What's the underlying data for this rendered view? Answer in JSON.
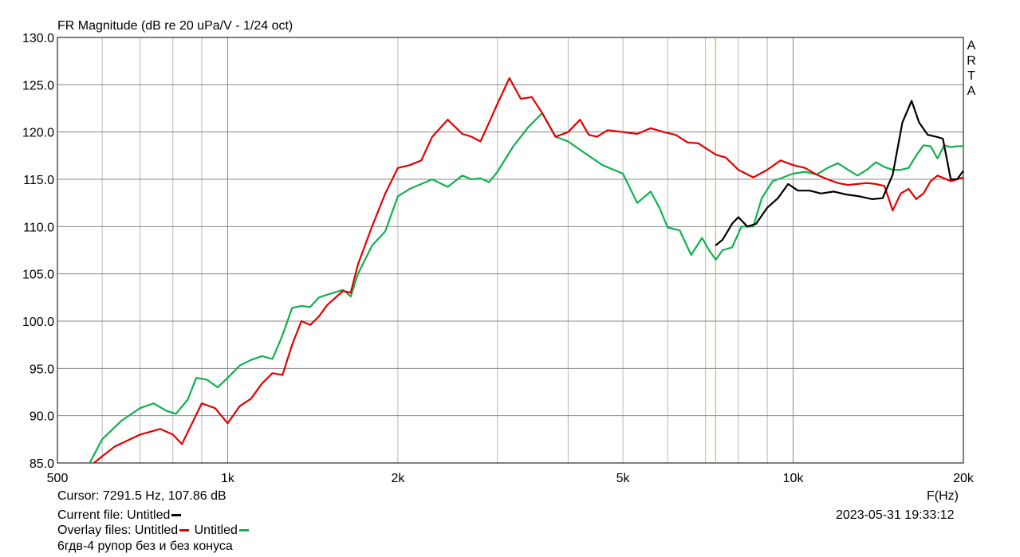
{
  "chart_data": {
    "type": "line",
    "title": "FR Magnitude (dB re 20 uPa/V - 1/24 oct)",
    "xlabel": "F(Hz)",
    "ylabel": "",
    "x_scale": "log",
    "xlim": [
      500,
      20000
    ],
    "ylim": [
      85.0,
      130.0
    ],
    "grid": true,
    "y_ticks": [
      "130.0",
      "125.0",
      "120.0",
      "115.0",
      "110.0",
      "105.0",
      "100.0",
      "95.0",
      "90.0",
      "85.0"
    ],
    "x_ticks": [
      {
        "value": 500,
        "label": "500"
      },
      {
        "value": 1000,
        "label": "1k"
      },
      {
        "value": 2000,
        "label": "2k"
      },
      {
        "value": 5000,
        "label": "5k"
      },
      {
        "value": 10000,
        "label": "10k"
      },
      {
        "value": 20000,
        "label": "20k"
      }
    ],
    "cursor_x": 7291.5,
    "series": [
      {
        "name": "Untitled (current)",
        "color": "#000000",
        "x": [
          7291,
          7500,
          7800,
          8000,
          8300,
          8600,
          9000,
          9400,
          9800,
          10200,
          10700,
          11200,
          11800,
          12400,
          13100,
          13800,
          14400,
          15000,
          15600,
          16200,
          16700,
          17300,
          17900,
          18400,
          19000,
          19500,
          20000
        ],
        "y": [
          108.0,
          108.6,
          110.3,
          111.0,
          110.0,
          110.3,
          112.0,
          113.0,
          114.5,
          113.8,
          113.8,
          113.5,
          113.7,
          113.4,
          113.2,
          112.9,
          113.0,
          115.5,
          121.0,
          123.3,
          121.0,
          119.7,
          119.5,
          119.3,
          115.0,
          115.0,
          115.9
        ]
      },
      {
        "name": "Untitled (overlay 1)",
        "color": "#e30000",
        "x": [
          580,
          630,
          700,
          760,
          800,
          830,
          870,
          900,
          950,
          1000,
          1050,
          1100,
          1150,
          1200,
          1250,
          1300,
          1350,
          1400,
          1450,
          1500,
          1600,
          1650,
          1700,
          1800,
          1900,
          2000,
          2100,
          2200,
          2300,
          2450,
          2600,
          2700,
          2800,
          2900,
          3000,
          3150,
          3300,
          3450,
          3600,
          3800,
          4000,
          4200,
          4350,
          4500,
          4700,
          5000,
          5300,
          5600,
          5900,
          6200,
          6500,
          6800,
          7000,
          7300,
          7600,
          8000,
          8500,
          9000,
          9500,
          10000,
          10500,
          11000,
          11500,
          12000,
          12500,
          13000,
          13500,
          14000,
          14500,
          15000,
          15500,
          16000,
          16500,
          17000,
          17500,
          18000,
          18500,
          19000,
          19500,
          20000
        ],
        "y": [
          85.0,
          86.7,
          88.0,
          88.6,
          88.0,
          87.0,
          89.5,
          91.3,
          90.8,
          89.2,
          91.0,
          91.8,
          93.4,
          94.5,
          94.3,
          97.5,
          100.0,
          99.6,
          100.5,
          101.7,
          103.2,
          103.0,
          106.0,
          110.0,
          113.5,
          116.2,
          116.5,
          117.0,
          119.5,
          121.3,
          119.8,
          119.5,
          119.0,
          121.0,
          123.0,
          125.7,
          123.5,
          123.7,
          122.0,
          119.5,
          120.0,
          121.3,
          119.7,
          119.5,
          120.2,
          120.0,
          119.8,
          120.4,
          120.0,
          119.7,
          118.9,
          118.8,
          118.3,
          117.6,
          117.3,
          116.0,
          115.2,
          116.0,
          117.0,
          116.5,
          116.2,
          115.5,
          115.0,
          114.6,
          114.4,
          114.5,
          114.6,
          114.5,
          114.3,
          111.7,
          113.5,
          114.0,
          112.9,
          113.5,
          114.8,
          115.4,
          115.1,
          114.8,
          115.0,
          115.2
        ]
      },
      {
        "name": "Untitled (overlay 2)",
        "color": "#10b050",
        "x": [
          570,
          600,
          650,
          700,
          740,
          780,
          810,
          850,
          880,
          920,
          960,
          1000,
          1050,
          1100,
          1150,
          1200,
          1250,
          1300,
          1350,
          1400,
          1450,
          1500,
          1600,
          1650,
          1700,
          1800,
          1900,
          2000,
          2100,
          2200,
          2300,
          2450,
          2600,
          2700,
          2800,
          2900,
          3000,
          3200,
          3400,
          3600,
          3800,
          4000,
          4300,
          4600,
          5000,
          5300,
          5600,
          5800,
          6000,
          6300,
          6600,
          6900,
          7100,
          7300,
          7500,
          7800,
          8100,
          8500,
          8800,
          9200,
          9600,
          10000,
          10500,
          11000,
          11500,
          12000,
          12500,
          13000,
          13500,
          14000,
          14500,
          15000,
          15500,
          16000,
          16500,
          17000,
          17500,
          18000,
          18500,
          19000,
          19500,
          20000
        ],
        "y": [
          85.0,
          87.5,
          89.5,
          90.8,
          91.3,
          90.5,
          90.2,
          91.7,
          94.0,
          93.8,
          93.0,
          94.0,
          95.3,
          95.9,
          96.3,
          96.0,
          98.5,
          101.4,
          101.6,
          101.5,
          102.5,
          102.8,
          103.3,
          102.6,
          105.0,
          108.0,
          109.5,
          113.2,
          114.0,
          114.5,
          115.0,
          114.2,
          115.4,
          115.0,
          115.1,
          114.7,
          115.8,
          118.5,
          120.5,
          122.0,
          119.5,
          119.0,
          117.7,
          116.5,
          115.6,
          112.5,
          113.7,
          112.0,
          109.9,
          109.6,
          107.0,
          108.8,
          107.5,
          106.5,
          107.5,
          107.8,
          110.0,
          110.0,
          113.0,
          114.8,
          115.2,
          115.6,
          115.8,
          115.5,
          116.2,
          116.7,
          116.0,
          115.4,
          116.0,
          116.8,
          116.3,
          116.0,
          116.0,
          116.2,
          117.5,
          118.6,
          118.5,
          117.2,
          118.6,
          118.4,
          118.5,
          118.5
        ]
      }
    ]
  },
  "title": "FR Magnitude (dB re 20 uPa/V - 1/24 oct)",
  "x_axis_unit": "F(Hz)",
  "arta_letters": [
    "A",
    "R",
    "T",
    "A"
  ],
  "cursor_text": "Cursor: 7291.5 Hz, 107.86 dB",
  "current_file_label": "Current file: Untitled",
  "overlay_label": "Overlay files:",
  "overlay_name_1": "Untitled",
  "overlay_name_2": "Untitled",
  "description": "6гдв-4 рупор без и без конуса",
  "timestamp": "2023-05-31   19:33:12",
  "colors": {
    "current": "#000000",
    "overlay1": "#e30000",
    "overlay2": "#10b050",
    "cursor": "#e0a020",
    "grid": "#b8b8b8",
    "grid_major": "#888888"
  }
}
